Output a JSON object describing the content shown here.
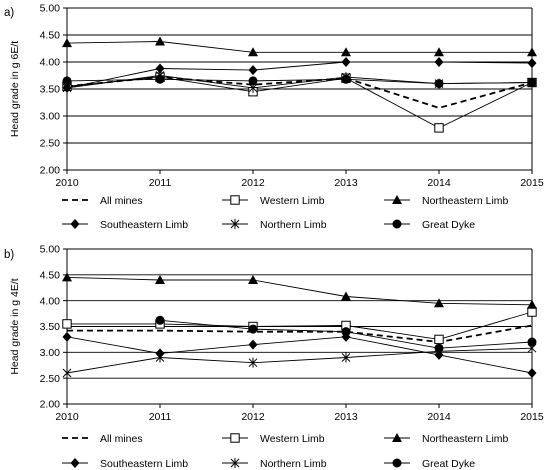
{
  "chart_data": [
    {
      "type": "line",
      "panel_label": "a)",
      "ylabel": "Head grade in g 6E/t",
      "x": [
        2010,
        2011,
        2012,
        2013,
        2014,
        2015
      ],
      "x_tick_labels": [
        "2010",
        "2011",
        "2012",
        "2013",
        "2014",
        "2015"
      ],
      "ylim": [
        2.0,
        5.0
      ],
      "y_ticks": [
        2.0,
        2.5,
        3.0,
        3.5,
        4.0,
        4.5,
        5.0
      ],
      "y_tick_labels": [
        "2.00",
        "2.50",
        "3.00",
        "3.50",
        "4.00",
        "4.50",
        "5.00"
      ],
      "grid": "horizontal",
      "legend_position": "bottom",
      "series": [
        {
          "name": "All mines",
          "marker": "none",
          "dash": true,
          "values": [
            3.55,
            3.72,
            3.58,
            3.7,
            3.15,
            3.62
          ]
        },
        {
          "name": "Western Limb",
          "marker": "square-open",
          "dash": false,
          "values": [
            3.55,
            3.72,
            3.45,
            3.7,
            2.78,
            3.62
          ]
        },
        {
          "name": "Northeastern Limb",
          "marker": "triangle",
          "dash": false,
          "values": [
            4.35,
            4.38,
            4.18,
            4.18,
            4.18,
            4.18
          ]
        },
        {
          "name": "Southeastern Limb",
          "marker": "diamond",
          "dash": false,
          "values": [
            3.52,
            3.88,
            3.85,
            4.0,
            4.0,
            3.98
          ]
        },
        {
          "name": "Northern Limb",
          "marker": "asterisk",
          "dash": false,
          "values": [
            3.52,
            3.75,
            3.52,
            3.72,
            3.6,
            3.62
          ]
        },
        {
          "name": "Great Dyke",
          "marker": "circle",
          "dash": false,
          "values": [
            3.65,
            3.68,
            3.65,
            3.68,
            3.6,
            3.62
          ]
        }
      ]
    },
    {
      "type": "line",
      "panel_label": "b)",
      "ylabel": "Head grade in g 4E/t",
      "x": [
        2010,
        2011,
        2012,
        2013,
        2014,
        2015
      ],
      "x_tick_labels": [
        "2010",
        "2011",
        "2012",
        "2013",
        "2014",
        "2015"
      ],
      "ylim": [
        2.0,
        5.0
      ],
      "y_ticks": [
        2.0,
        2.5,
        3.0,
        3.5,
        4.0,
        4.5,
        5.0
      ],
      "y_tick_labels": [
        "2.00",
        "2.50",
        "3.00",
        "3.50",
        "4.00",
        "4.50",
        "5.00"
      ],
      "grid": "horizontal",
      "legend_position": "bottom",
      "series": [
        {
          "name": "All mines",
          "marker": "none",
          "dash": true,
          "values": [
            3.42,
            3.42,
            3.4,
            3.4,
            3.2,
            3.52
          ]
        },
        {
          "name": "Western Limb",
          "marker": "square-open",
          "dash": false,
          "values": [
            3.55,
            3.55,
            3.5,
            3.52,
            3.25,
            3.78
          ]
        },
        {
          "name": "Northeastern Limb",
          "marker": "triangle",
          "dash": false,
          "values": [
            4.45,
            4.4,
            4.4,
            4.08,
            3.95,
            3.92
          ]
        },
        {
          "name": "Southeastern Limb",
          "marker": "diamond",
          "dash": false,
          "values": [
            3.3,
            2.98,
            3.15,
            3.3,
            2.95,
            2.6
          ]
        },
        {
          "name": "Northern Limb",
          "marker": "asterisk",
          "dash": false,
          "values": [
            2.6,
            2.9,
            2.8,
            2.9,
            3.02,
            3.08
          ]
        },
        {
          "name": "Great Dyke",
          "marker": "circle",
          "dash": false,
          "values": [
            null,
            3.62,
            3.45,
            3.4,
            3.08,
            3.2
          ]
        }
      ]
    }
  ]
}
